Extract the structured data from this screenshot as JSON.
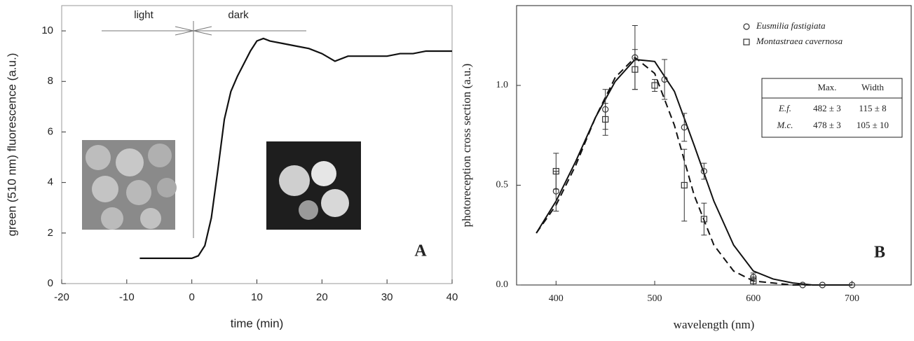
{
  "chart_data": [
    {
      "type": "line",
      "xlabel": "time (min)",
      "ylabel": "green (510 nm) fluorescence (a.u.)",
      "annotations": [
        "light",
        "dark"
      ],
      "panel_label": "A",
      "x": [
        -8,
        -4,
        0,
        1,
        2,
        3,
        4,
        5,
        6,
        7,
        8,
        9,
        10,
        11,
        12,
        14,
        16,
        18,
        20,
        22,
        24,
        26,
        28,
        30,
        32,
        34,
        36,
        38,
        40
      ],
      "series": [
        {
          "color": "#111111",
          "values": [
            1.0,
            1.0,
            1.0,
            1.1,
            1.5,
            2.6,
            4.5,
            6.5,
            7.6,
            8.2,
            8.7,
            9.2,
            9.6,
            9.7,
            9.6,
            9.5,
            9.4,
            9.3,
            9.1,
            8.8,
            9.0,
            9.0,
            9.0,
            9.0,
            9.1,
            9.1,
            9.2,
            9.2,
            9.2
          ]
        }
      ],
      "xlim": [
        -20,
        40
      ],
      "ylim": [
        0,
        11
      ],
      "xticks": [
        -20,
        -10,
        0,
        10,
        20,
        30,
        40
      ],
      "yticks": [
        0,
        2,
        4,
        6,
        8,
        10
      ]
    },
    {
      "type": "scatter",
      "xlabel": "wavelength (nm)",
      "ylabel": "photoreception cross section (a.u.)",
      "panel_label": "B",
      "series": [
        {
          "name": "Eusmilia fastigiata",
          "marker": "circle",
          "color": "#333333",
          "x": [
            400,
            450,
            480,
            510,
            530,
            550,
            600,
            650,
            670,
            700
          ],
          "values": [
            0.47,
            0.88,
            1.14,
            1.03,
            0.79,
            0.57,
            0.04,
            0.0,
            0.0,
            0.0
          ],
          "errors": [
            0.1,
            0.1,
            0.16,
            0.1,
            0.07,
            0.04,
            0.02,
            0,
            0,
            0
          ]
        },
        {
          "name": "Montastraea cavernosa",
          "marker": "square",
          "color": "#333333",
          "x": [
            400,
            450,
            480,
            500,
            530,
            550,
            600
          ],
          "values": [
            0.57,
            0.83,
            1.08,
            1.0,
            0.5,
            0.33,
            0.02
          ],
          "errors": [
            0.09,
            0.08,
            0.1,
            0.03,
            0.18,
            0.08,
            0.02
          ]
        }
      ],
      "curves": [
        {
          "dash": false,
          "x": [
            380,
            400,
            420,
            440,
            460,
            480,
            500,
            520,
            540,
            560,
            580,
            600,
            620,
            640,
            660,
            700
          ],
          "values": [
            0.26,
            0.42,
            0.62,
            0.84,
            1.02,
            1.13,
            1.12,
            0.97,
            0.7,
            0.42,
            0.2,
            0.07,
            0.03,
            0.01,
            0.0,
            0.0
          ]
        },
        {
          "dash": true,
          "x": [
            380,
            400,
            420,
            440,
            460,
            480,
            500,
            520,
            540,
            560,
            580,
            600,
            620,
            640,
            660
          ],
          "values": [
            0.26,
            0.4,
            0.6,
            0.84,
            1.04,
            1.14,
            1.06,
            0.8,
            0.45,
            0.2,
            0.07,
            0.02,
            0.01,
            0.0,
            0.0
          ]
        }
      ],
      "table": {
        "header": [
          "Max.",
          "Width"
        ],
        "rows": [
          [
            "E.f.",
            "482 ± 3",
            "115 ± 8"
          ],
          [
            "M.c.",
            "478 ± 3",
            "105 ± 10"
          ]
        ]
      },
      "legend": "upper right",
      "xlim": [
        360,
        760
      ],
      "ylim": [
        0,
        1.4
      ],
      "xticks": [
        400,
        500,
        600,
        700
      ],
      "yticks": [
        {
          "value": 0,
          "label": "0.0"
        },
        {
          "value": 0.5,
          "label": "0.5"
        },
        {
          "value": 1,
          "label": "1.0"
        }
      ]
    }
  ]
}
